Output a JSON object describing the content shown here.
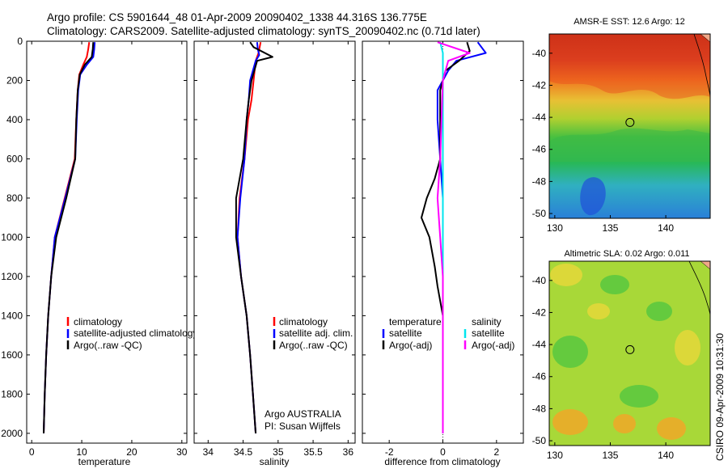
{
  "header": {
    "line1": "Argo profile: CS 5901644_48 01-Apr-2009 20090402_1338 44.316S 136.775E",
    "line2": "Climatology: CARS2009. Satellite-adjusted climatology: synTS_20090402.nc (0.71d later)"
  },
  "side_label": "CSIRO 09-Apr-2009 10:31:30",
  "chart_data": [
    {
      "type": "line",
      "id": "temperature",
      "xlabel": "temperature",
      "xlim": [
        -1,
        31
      ],
      "xticks": [
        0,
        10,
        20,
        30
      ],
      "ylim": [
        0,
        2050
      ],
      "yticks": [
        0,
        200,
        400,
        600,
        800,
        1000,
        1200,
        1400,
        1600,
        1800,
        2000
      ],
      "y_inverted": true,
      "legend": {
        "position": "lower-right",
        "entries": [
          {
            "label": "climatology",
            "color": "#ff0000"
          },
          {
            "label": "satellite-adjusted climatology",
            "color": "#0000ff"
          },
          {
            "label": "Argo(..raw -QC)",
            "color": "#000000"
          }
        ]
      },
      "series": [
        {
          "color": "#ff0000",
          "points": [
            [
              11.5,
              5
            ],
            [
              11.3,
              40
            ],
            [
              11.0,
              80
            ],
            [
              10.3,
              120
            ],
            [
              9.5,
              170
            ],
            [
              9.2,
              250
            ],
            [
              8.9,
              400
            ],
            [
              8.6,
              600
            ],
            [
              6.6,
              800
            ],
            [
              4.6,
              1000
            ],
            [
              3.9,
              1200
            ],
            [
              3.3,
              1400
            ],
            [
              2.9,
              1600
            ],
            [
              2.6,
              1800
            ],
            [
              2.4,
              2000
            ]
          ]
        },
        {
          "color": "#0000ff",
          "points": [
            [
              12.6,
              5
            ],
            [
              12.5,
              40
            ],
            [
              12.3,
              80
            ],
            [
              11.0,
              120
            ],
            [
              9.7,
              170
            ],
            [
              9.3,
              250
            ],
            [
              9.0,
              400
            ],
            [
              8.7,
              600
            ],
            [
              6.7,
              800
            ],
            [
              4.6,
              1000
            ],
            [
              3.9,
              1200
            ],
            [
              3.3,
              1400
            ],
            [
              2.9,
              1600
            ],
            [
              2.6,
              1800
            ],
            [
              2.4,
              2000
            ]
          ]
        },
        {
          "color": "#000000",
          "points": [
            [
              12.3,
              5
            ],
            [
              12.2,
              40
            ],
            [
              12.0,
              80
            ],
            [
              10.6,
              120
            ],
            [
              9.6,
              170
            ],
            [
              9.2,
              250
            ],
            [
              8.9,
              400
            ],
            [
              8.7,
              600
            ],
            [
              6.9,
              800
            ],
            [
              4.9,
              1000
            ],
            [
              3.9,
              1200
            ],
            [
              3.3,
              1400
            ],
            [
              2.9,
              1600
            ],
            [
              2.6,
              1800
            ],
            [
              2.4,
              2000
            ]
          ]
        }
      ]
    },
    {
      "type": "line",
      "id": "salinity",
      "xlabel": "salinity",
      "xlim": [
        33.8,
        36.1
      ],
      "xticks": [
        34,
        34.5,
        35,
        35.5,
        36
      ],
      "ylim": [
        0,
        2050
      ],
      "y_inverted": true,
      "legend": {
        "position": "lower-right",
        "entries": [
          {
            "label": "climatology",
            "color": "#ff0000"
          },
          {
            "label": "satellite adj. clim.",
            "color": "#0000ff"
          },
          {
            "label": "Argo(..raw -QC)",
            "color": "#000000"
          }
        ]
      },
      "annotations": [
        "Argo AUSTRALIA",
        "PI: Susan Wijffels"
      ],
      "series": [
        {
          "color": "#ff0000",
          "points": [
            [
              34.75,
              5
            ],
            [
              34.72,
              60
            ],
            [
              34.68,
              100
            ],
            [
              34.65,
              200
            ],
            [
              34.62,
              300
            ],
            [
              34.57,
              400
            ],
            [
              34.52,
              600
            ],
            [
              34.45,
              800
            ],
            [
              34.42,
              1000
            ],
            [
              34.47,
              1200
            ],
            [
              34.55,
              1400
            ],
            [
              34.6,
              1600
            ],
            [
              34.64,
              1800
            ],
            [
              34.68,
              2000
            ]
          ]
        },
        {
          "color": "#0000ff",
          "points": [
            [
              34.7,
              5
            ],
            [
              34.71,
              40
            ],
            [
              34.73,
              70
            ],
            [
              34.68,
              100
            ],
            [
              34.6,
              200
            ],
            [
              34.58,
              300
            ],
            [
              34.55,
              400
            ],
            [
              34.52,
              600
            ],
            [
              34.46,
              800
            ],
            [
              34.42,
              1000
            ],
            [
              34.47,
              1200
            ],
            [
              34.55,
              1400
            ],
            [
              34.6,
              1600
            ],
            [
              34.64,
              1800
            ],
            [
              34.68,
              2000
            ]
          ]
        },
        {
          "color": "#000000",
          "points": [
            [
              34.6,
              5
            ],
            [
              34.65,
              30
            ],
            [
              34.92,
              80
            ],
            [
              34.7,
              100
            ],
            [
              34.62,
              200
            ],
            [
              34.58,
              300
            ],
            [
              34.55,
              400
            ],
            [
              34.5,
              600
            ],
            [
              34.4,
              800
            ],
            [
              34.4,
              1000
            ],
            [
              34.47,
              1200
            ],
            [
              34.55,
              1400
            ],
            [
              34.6,
              1600
            ],
            [
              34.64,
              1800
            ],
            [
              34.68,
              2000
            ]
          ]
        }
      ]
    },
    {
      "type": "line",
      "id": "difference",
      "xlabel": "difference from climatology",
      "xlim": [
        -3,
        3
      ],
      "xticks": [
        -2,
        0,
        2
      ],
      "ylim": [
        0,
        2050
      ],
      "y_inverted": true,
      "legend": {
        "position": "lower-right",
        "groups": [
          {
            "title": "temperature",
            "entries": [
              {
                "label": "satellite",
                "color": "#0000ff"
              },
              {
                "label": "Argo(-adj)",
                "color": "#000000"
              }
            ]
          },
          {
            "title": "salinity",
            "entries": [
              {
                "label": "satellite",
                "color": "#00e5ee"
              },
              {
                "label": "Argo(-adj)",
                "color": "#ff00ff"
              }
            ]
          }
        ]
      },
      "series": [
        {
          "color": "#0000ff",
          "points": [
            [
              1.3,
              5
            ],
            [
              1.6,
              60
            ],
            [
              0.5,
              100
            ],
            [
              0.2,
              150
            ],
            [
              -0.2,
              250
            ],
            [
              -0.2,
              400
            ],
            [
              -0.1,
              600
            ],
            [
              0,
              800
            ],
            [
              0,
              1000
            ],
            [
              0,
              1200
            ],
            [
              0,
              1400
            ],
            [
              0,
              1600
            ],
            [
              0,
              1800
            ],
            [
              0,
              2000
            ]
          ]
        },
        {
          "color": "#000000",
          "points": [
            [
              0.9,
              5
            ],
            [
              1.0,
              50
            ],
            [
              0.6,
              100
            ],
            [
              0.1,
              150
            ],
            [
              -0.1,
              250
            ],
            [
              -0.1,
              600
            ],
            [
              -0.3,
              700
            ],
            [
              -0.6,
              800
            ],
            [
              -0.8,
              900
            ],
            [
              -0.5,
              1000
            ],
            [
              -0.3,
              1150
            ],
            [
              -0.2,
              1250
            ],
            [
              0,
              1400
            ],
            [
              0,
              1600
            ],
            [
              0,
              1800
            ],
            [
              0,
              2000
            ]
          ]
        },
        {
          "color": "#00e5ee",
          "points": [
            [
              -0.1,
              5
            ],
            [
              0,
              60
            ],
            [
              0,
              100
            ],
            [
              0,
              200
            ],
            [
              0,
              400
            ],
            [
              0,
              600
            ],
            [
              0,
              800
            ],
            [
              0,
              1000
            ],
            [
              0,
              1200
            ],
            [
              0,
              1400
            ],
            [
              0,
              1600
            ],
            [
              0,
              1800
            ],
            [
              0,
              2000
            ]
          ]
        },
        {
          "color": "#ff00ff",
          "points": [
            [
              -0.2,
              5
            ],
            [
              1.0,
              60
            ],
            [
              0.2,
              100
            ],
            [
              0,
              200
            ],
            [
              -0.05,
              400
            ],
            [
              -0.1,
              600
            ],
            [
              -0.2,
              800
            ],
            [
              -0.1,
              1000
            ],
            [
              0,
              1200
            ],
            [
              0,
              1400
            ],
            [
              0,
              1600
            ],
            [
              0,
              1800
            ],
            [
              0,
              2000
            ]
          ]
        }
      ]
    },
    {
      "type": "heatmap",
      "id": "sst-map",
      "title": "AMSR-E SST: 12.6 Argo: 12",
      "xlim": [
        129.5,
        144
      ],
      "ylim": [
        -50.3,
        -38.8
      ],
      "xticks": [
        130,
        135,
        140
      ],
      "yticks": [
        -40,
        -42,
        -44,
        -46,
        -48,
        -50
      ],
      "marker": {
        "lon": 136.775,
        "lat": -44.316
      },
      "color_bands": [
        {
          "lat": -40,
          "color": "#c8281c"
        },
        {
          "lat": -42,
          "color": "#f0701e"
        },
        {
          "lat": -43.5,
          "color": "#e0cc3a"
        },
        {
          "lat": -45,
          "color": "#78c838"
        },
        {
          "lat": -47.5,
          "color": "#28b850"
        },
        {
          "lat": -49,
          "color": "#28a8c8"
        },
        {
          "lat": -50.3,
          "color": "#2878d8"
        }
      ]
    },
    {
      "type": "heatmap",
      "id": "sla-map",
      "title": "Altimetric SLA: 0.02 Argo: 0.011",
      "xlim": [
        129.5,
        144
      ],
      "ylim": [
        -50.3,
        -38.8
      ],
      "xticks": [
        130,
        135,
        140
      ],
      "yticks": [
        -40,
        -42,
        -44,
        -46,
        -48,
        -50
      ],
      "marker": {
        "lon": 136.775,
        "lat": -44.316
      },
      "base_color": "#a8d838"
    }
  ]
}
